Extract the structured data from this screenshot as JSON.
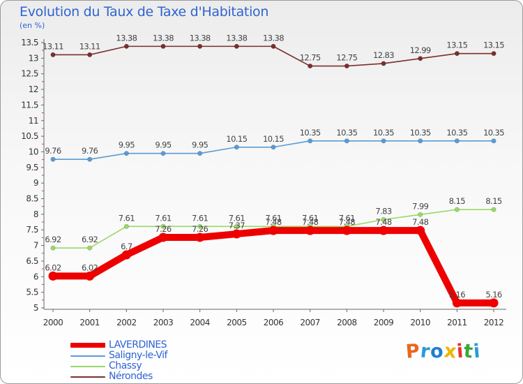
{
  "title": "Evolution du Taux de Taxe d'Habitation",
  "unit": "(en %)",
  "logo": {
    "text": "Proxiti",
    "colors": [
      "#e8681c",
      "#2b9ad8",
      "#1f7fd0",
      "#f0b400",
      "#e83030",
      "#3aa63a",
      "#2b9ad8"
    ]
  },
  "chart_data": {
    "type": "line",
    "x": [
      "2000",
      "2001",
      "2002",
      "2003",
      "2004",
      "2005",
      "2006",
      "2007",
      "2008",
      "2009",
      "2010",
      "2011",
      "2012"
    ],
    "ylim": [
      5,
      13.5
    ],
    "y_ticks": [
      "5",
      "5.5",
      "6",
      "6.5",
      "7",
      "7.5",
      "8",
      "8.5",
      "9",
      "9.5",
      "10",
      "10.5",
      "11",
      "11.5",
      "12",
      "12.5",
      "13",
      "13.5"
    ],
    "legend_position": "bottom-left",
    "grid": false,
    "series": [
      {
        "name": "LAVERDINES",
        "color": "#ee0000",
        "values": [
          6.02,
          6.02,
          6.7,
          7.26,
          7.26,
          7.37,
          7.48,
          7.48,
          7.48,
          7.48,
          7.48,
          5.16,
          5.16
        ],
        "labels": [
          "6.02",
          "6.02",
          "6.7",
          "7.26",
          "7.26",
          "7.37",
          "7.48",
          "7.48",
          "7.48",
          "7.48",
          "7.48",
          "5.16",
          "5.16"
        ]
      },
      {
        "name": "Saligny-le-Vif",
        "color": "#5b9bd5",
        "values": [
          9.76,
          9.76,
          9.95,
          9.95,
          9.95,
          10.15,
          10.15,
          10.35,
          10.35,
          10.35,
          10.35,
          10.35,
          10.35
        ],
        "labels": [
          "9.76",
          "9.76",
          "9.95",
          "9.95",
          "9.95",
          "10.15",
          "10.15",
          "10.35",
          "10.35",
          "10.35",
          "10.35",
          "10.35",
          "10.35"
        ]
      },
      {
        "name": "Chassy",
        "color": "#99d966",
        "values": [
          6.92,
          6.92,
          7.61,
          7.61,
          7.61,
          7.61,
          7.61,
          7.61,
          7.61,
          7.83,
          7.99,
          8.15,
          8.15
        ],
        "labels": [
          "6.92",
          "6.92",
          "7.61",
          "7.61",
          "7.61",
          "7.61",
          "7.61",
          "7.61",
          "7.61",
          "7.83",
          "7.99",
          "8.15",
          "8.15"
        ]
      },
      {
        "name": "Nérondes",
        "color": "#7a2e2e",
        "values": [
          13.11,
          13.11,
          13.38,
          13.38,
          13.38,
          13.38,
          13.38,
          12.75,
          12.75,
          12.83,
          12.99,
          13.15,
          13.15
        ],
        "labels": [
          "13.11",
          "13.11",
          "13.38",
          "13.38",
          "13.38",
          "13.38",
          "13.38",
          "12.75",
          "12.75",
          "12.83",
          "12.99",
          "13.15",
          "13.15"
        ]
      }
    ]
  }
}
